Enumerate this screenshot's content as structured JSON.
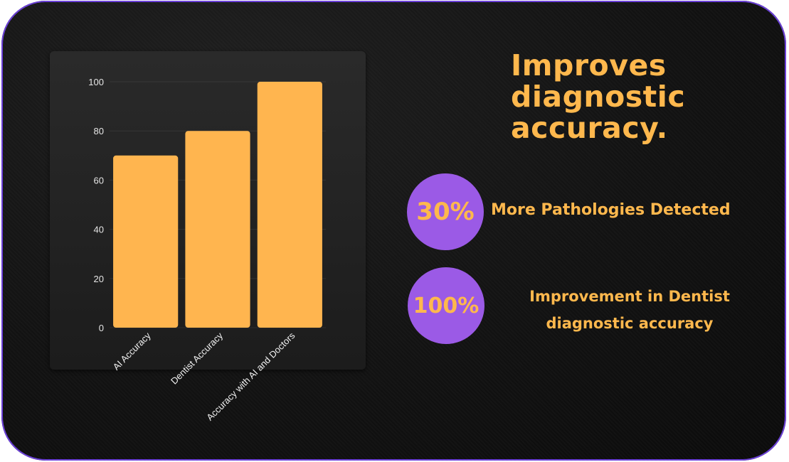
{
  "headline": "Improves diagnostic accuracy.",
  "stats": [
    {
      "value": "30%",
      "label": "More Pathologies Detected"
    },
    {
      "value": "100%",
      "label": "Improvement in Dentist diagnostic accuracy"
    }
  ],
  "colors": {
    "accent_orange": "#ffb84d",
    "bar_fill": "#ffb54f",
    "circle_purple": "#9b5ae6",
    "background": "#141414",
    "border_purple": "#6a3fd8"
  },
  "chart_data": {
    "type": "bar",
    "categories": [
      "AI Accuracy",
      "Dentist Accuracy",
      "Accuracy with AI and Doctors"
    ],
    "values": [
      70,
      80,
      100
    ],
    "yticks": [
      0,
      20,
      40,
      60,
      80,
      100
    ],
    "ylim": [
      0,
      100
    ],
    "title": "",
    "xlabel": "",
    "ylabel": "",
    "grid": true,
    "legend": "none"
  }
}
